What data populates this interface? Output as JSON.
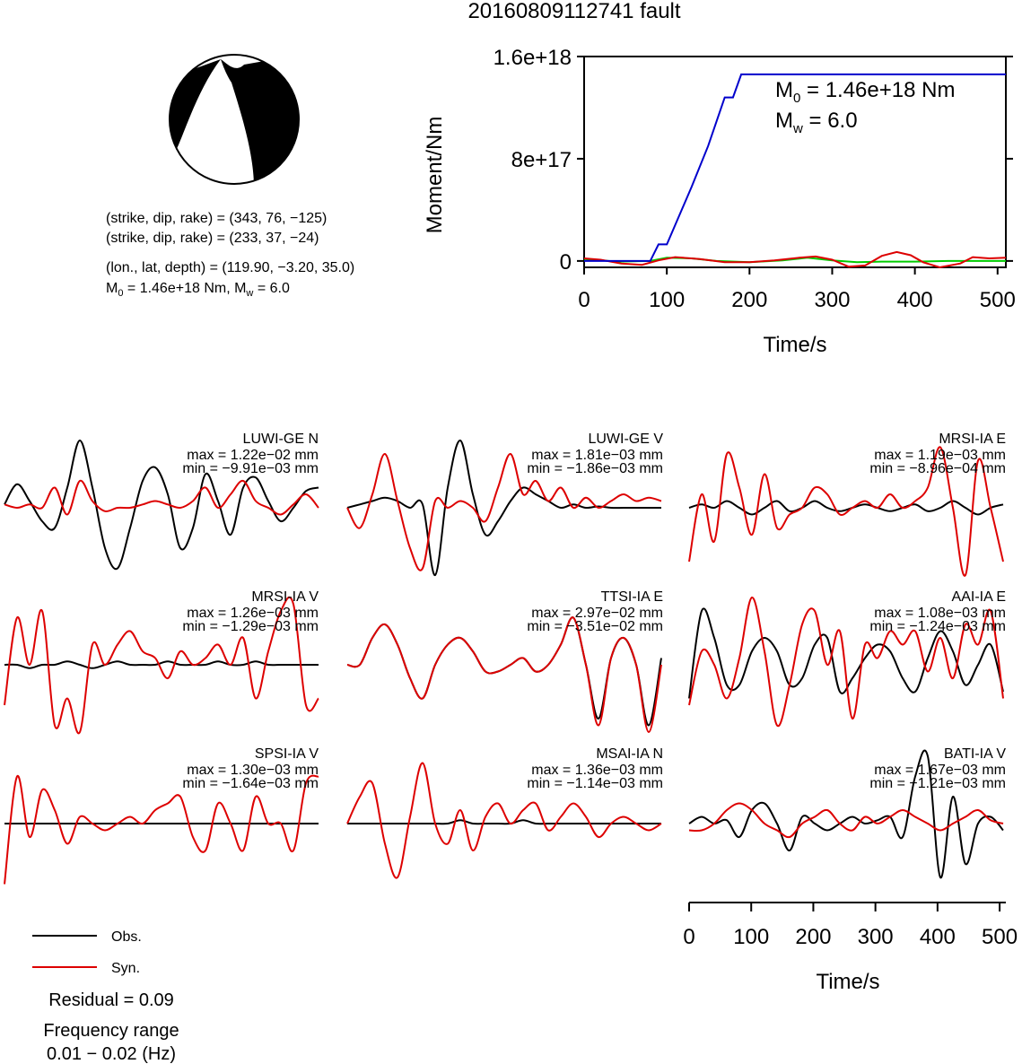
{
  "page_title": "20160809112741 fault",
  "beachball": {
    "colors": {
      "fill": "#000000",
      "paper": "#ffffff"
    },
    "lines": {
      "np1": "(strike, dip, rake) = (343, 76, −125)",
      "np2": "(strike, dip, rake) = (233, 37, −24)",
      "loc": "(lon., lat, depth) = (119.90, −3.20, 35.0)",
      "m0_prefix": "M",
      "m0_sub": "0",
      "m0_value": " = 1.46e+18 Nm, M",
      "mw_sub": "w",
      "mw_value": " = 6.0"
    }
  },
  "legend": {
    "obs": "Obs.",
    "syn": "Syn.",
    "residual": "Residual = 0.09",
    "freq_label": "Frequency range",
    "freq_value": "0.01 − 0.02 (Hz)"
  },
  "chart_data": [
    {
      "id": "moment_rate",
      "type": "line",
      "xlabel": "Time/s",
      "ylabel": "Moment/Nm",
      "xlim": [
        0,
        510
      ],
      "ylim": [
        -50000000000000000,
        1600000000000000000
      ],
      "xticks": [
        0,
        100,
        200,
        300,
        400,
        500
      ],
      "xtick_labels": [
        "0",
        "100",
        "200",
        "300",
        "400",
        "500"
      ],
      "yticks": [
        0,
        800000000000000000,
        1600000000000000000
      ],
      "ytick_labels": [
        "0",
        "8e+17",
        "1.6e+18"
      ],
      "annotation": {
        "m0_prefix": "M",
        "m0_sub": "0",
        "m0_value": " = 1.46e+18 Nm",
        "mw_prefix": "M",
        "mw_sub": "w",
        "mw_value": " = 6.0"
      },
      "series": [
        {
          "color": "#0000cc",
          "x": [
            0,
            80,
            90,
            100,
            110,
            130,
            150,
            170,
            180,
            190,
            200,
            510
          ],
          "y": [
            0,
            0,
            130000000000000000,
            130000000000000000,
            280000000000000000,
            580000000000000000,
            900000000000000000,
            1280000000000000000,
            1280000000000000000,
            1460000000000000000,
            1460000000000000000,
            1460000000000000000
          ]
        },
        {
          "color": "#00cc00",
          "x": [
            0,
            40,
            80,
            100,
            130,
            160,
            200,
            240,
            270,
            300,
            330,
            360,
            400,
            440,
            480,
            510
          ],
          "y": [
            15000000000000000,
            -5000000000000000,
            0,
            25000000000000000,
            20000000000000000,
            0,
            -10000000000000000,
            5000000000000000,
            25000000000000000,
            5000000000000000,
            -10000000000000000,
            -5000000000000000,
            -5000000000000000,
            0,
            0,
            0
          ]
        },
        {
          "color": "#dd0000",
          "x": [
            0,
            20,
            45,
            70,
            90,
            110,
            140,
            170,
            200,
            230,
            260,
            280,
            300,
            320,
            340,
            360,
            378,
            395,
            410,
            430,
            455,
            470,
            490,
            510
          ],
          "y": [
            20000000000000000,
            10000000000000000,
            -20000000000000000,
            -30000000000000000,
            5000000000000000,
            30000000000000000,
            15000000000000000,
            -10000000000000000,
            -10000000000000000,
            5000000000000000,
            25000000000000000,
            35000000000000000,
            10000000000000000,
            -45000000000000000,
            -35000000000000000,
            40000000000000000,
            70000000000000000,
            45000000000000000,
            -10000000000000000,
            -50000000000000000,
            -20000000000000000,
            30000000000000000,
            20000000000000000,
            25000000000000000
          ]
        }
      ]
    },
    {
      "id": "waveforms",
      "type": "line",
      "xlabel": "Time/s",
      "xlim": [
        0,
        510
      ],
      "xticks": [
        0,
        100,
        200,
        300,
        400,
        500
      ],
      "xtick_labels": [
        "0",
        "100",
        "200",
        "300",
        "400",
        "500"
      ],
      "legend": [
        {
          "name": "Obs.",
          "color": "#000000"
        },
        {
          "name": "Syn.",
          "color": "#dd0000"
        }
      ],
      "panels": [
        {
          "station": "LUWI-GE N",
          "max": "max = 1.22e−02 mm",
          "min": "min = −9.91e−03 mm",
          "obs": [
            0.05,
            0.35,
            0.1,
            -0.2,
            -0.3,
            0.3,
            1.0,
            0.3,
            -0.6,
            -0.9,
            -0.3,
            0.4,
            0.6,
            0.2,
            -0.6,
            -0.3,
            0.5,
            0.1,
            -0.4,
            0.3,
            0.45,
            0.1,
            -0.2,
            0.0,
            0.25,
            0.3
          ],
          "syn": [
            0.05,
            0.0,
            0.05,
            0.0,
            0.3,
            -0.1,
            0.4,
            0.1,
            -0.05,
            0.0,
            0.0,
            0.05,
            0.1,
            0.05,
            0.0,
            0.1,
            0.3,
            0.0,
            0.2,
            0.4,
            0.1,
            0.0,
            -0.1,
            0.05,
            0.2,
            0.0
          ]
        },
        {
          "station": "LUWI-GE V",
          "max": "max = 1.81e−03 mm",
          "min": "min = −1.86e−03 mm",
          "obs": [
            0.0,
            0.05,
            0.1,
            0.15,
            0.1,
            0.0,
            0.05,
            -1.0,
            0.3,
            1.0,
            0.2,
            -0.4,
            -0.2,
            0.1,
            0.3,
            0.2,
            0.1,
            0.0,
            0.05,
            0.0,
            0.02,
            0.0,
            0.0,
            0.0,
            0.0,
            0.0
          ],
          "syn": [
            0.0,
            -0.3,
            0.2,
            0.8,
            0.1,
            -0.6,
            -0.9,
            0.1,
            0.0,
            0.1,
            0.0,
            -0.2,
            0.3,
            0.8,
            0.2,
            0.4,
            0.1,
            0.3,
            0.0,
            0.15,
            0.0,
            0.1,
            0.2,
            0.1,
            0.15,
            0.1
          ]
        },
        {
          "station": "MRSI-IA E",
          "max": "max = 1.19e−03 mm",
          "min": "min = −8.96e−04 mm",
          "obs": [
            0.0,
            0.05,
            0.0,
            0.1,
            0.0,
            -0.1,
            0.0,
            0.1,
            -0.05,
            0.0,
            0.1,
            0.0,
            -0.05,
            0.0,
            0.05,
            0.0,
            -0.05,
            0.0,
            0.05,
            -0.05,
            0.0,
            0.1,
            0.0,
            -0.1,
            0.0,
            0.05
          ],
          "syn": [
            -0.8,
            0.2,
            -0.5,
            0.8,
            0.3,
            -0.4,
            0.5,
            -0.3,
            -0.1,
            0.0,
            0.3,
            0.2,
            -0.1,
            0.0,
            0.1,
            0.0,
            0.2,
            0.0,
            0.1,
            0.3,
            0.9,
            0.0,
            -1.0,
            0.7,
            0.0,
            -0.8
          ]
        },
        {
          "station": "MRSI-IA V",
          "max": "max = 1.26e−03 mm",
          "min": "min = −1.29e−03 mm",
          "obs": [
            0.0,
            0.0,
            -0.05,
            0.0,
            0.0,
            0.05,
            0.0,
            -0.05,
            0.0,
            0.05,
            0.0,
            0.0,
            0.0,
            0.05,
            0.0,
            0.0,
            0.0,
            0.05,
            0.0,
            0.0,
            0.05,
            0.0,
            0.0,
            0.0,
            0.0,
            0.0
          ],
          "syn": [
            -0.6,
            0.7,
            0.0,
            0.8,
            -0.9,
            -0.5,
            -1.0,
            0.3,
            0.0,
            0.3,
            0.5,
            0.2,
            0.1,
            -0.2,
            0.2,
            0.0,
            0.1,
            0.3,
            0.0,
            0.4,
            -0.5,
            0.2,
            0.8,
            0.9,
            -0.6,
            -0.5
          ]
        },
        {
          "station": "TTSI-IA E",
          "max": "max = 2.97e−02 mm",
          "min": "min = −3.51e−02 mm",
          "obs": [
            0.0,
            0.0,
            0.4,
            0.6,
            0.3,
            -0.2,
            -0.5,
            0.0,
            0.3,
            0.4,
            0.2,
            -0.1,
            -0.1,
            0.0,
            0.1,
            -0.1,
            0.0,
            0.3,
            0.7,
            0.0,
            -0.8,
            0.1,
            0.4,
            0.0,
            -0.9,
            0.1
          ],
          "syn": [
            0.0,
            0.0,
            0.4,
            0.6,
            0.3,
            -0.2,
            -0.5,
            0.0,
            0.3,
            0.4,
            0.2,
            -0.1,
            -0.1,
            0.0,
            0.1,
            -0.1,
            0.0,
            0.3,
            0.7,
            0.0,
            -0.9,
            0.1,
            0.4,
            0.0,
            -1.0,
            0.0
          ]
        },
        {
          "station": "AAI-IA E",
          "max": "max = 1.08e−03 mm",
          "min": "min = −1.24e−03 mm",
          "obs": [
            -0.5,
            0.8,
            0.4,
            -0.3,
            -0.3,
            0.2,
            0.4,
            0.2,
            -0.3,
            -0.2,
            0.3,
            0.4,
            -0.4,
            -0.2,
            0.1,
            0.3,
            0.2,
            -0.2,
            -0.4,
            0.1,
            0.5,
            0.2,
            -0.3,
            0.0,
            0.3,
            -0.4
          ],
          "syn": [
            -0.6,
            0.2,
            0.0,
            -0.5,
            0.1,
            1.0,
            0.2,
            -0.9,
            -0.3,
            0.6,
            0.8,
            0.0,
            0.5,
            -0.8,
            0.3,
            0.1,
            0.5,
            0.3,
            0.5,
            -0.1,
            0.4,
            -0.2,
            0.6,
            0.3,
            0.8,
            -0.5
          ]
        },
        {
          "station": "SPSI-IA V",
          "max": "max = 1.30e−03 mm",
          "min": "min = −1.64e−03 mm",
          "obs": [
            0.0,
            0.0,
            0.0,
            0.0,
            0.0,
            0.0,
            0.0,
            0.0,
            0.0,
            0.0,
            0.0,
            0.0,
            0.0,
            0.0,
            0.0,
            0.0,
            0.0,
            0.0,
            0.0,
            0.0,
            0.0,
            0.0,
            0.0,
            0.0,
            0.0,
            0.0
          ],
          "syn": [
            -0.9,
            0.7,
            -0.2,
            0.5,
            0.2,
            -0.3,
            0.1,
            0.0,
            -0.1,
            0.0,
            0.1,
            0.0,
            0.2,
            0.3,
            0.4,
            -0.2,
            -0.4,
            0.3,
            0.0,
            -0.4,
            0.4,
            0.0,
            0.0,
            -0.4,
            0.6,
            0.7
          ]
        },
        {
          "station": "MSAI-IA N",
          "max": "max = 1.36e−03 mm",
          "min": "min = −1.14e−03 mm",
          "obs": [
            0.0,
            0.0,
            0.0,
            0.0,
            0.0,
            0.0,
            0.0,
            0.0,
            0.0,
            0.05,
            0.0,
            0.0,
            0.0,
            0.0,
            0.05,
            0.0,
            0.0,
            0.0,
            0.0,
            0.0,
            0.0,
            0.0,
            0.0,
            0.0,
            0.0,
            0.0
          ],
          "syn": [
            0.0,
            0.4,
            0.6,
            -0.3,
            -0.8,
            0.1,
            0.9,
            0.0,
            -0.3,
            0.2,
            -0.4,
            0.1,
            0.3,
            0.0,
            0.2,
            0.3,
            -0.1,
            0.1,
            0.3,
            0.1,
            -0.2,
            0.0,
            0.1,
            0.0,
            -0.1,
            0.0
          ]
        },
        {
          "station": "BATI-IA V",
          "max": "max = 1.67e−03 mm",
          "min": "min = −1.21e−03 mm",
          "obs": [
            0.0,
            0.1,
            0.0,
            0.05,
            -0.2,
            0.2,
            0.3,
            0.0,
            -0.4,
            0.1,
            0.0,
            -0.1,
            0.0,
            0.1,
            0.0,
            0.05,
            0.1,
            -0.2,
            0.7,
            1.0,
            -0.8,
            0.4,
            -0.6,
            0.0,
            0.1,
            -0.1
          ],
          "syn": [
            -0.1,
            -0.1,
            0.0,
            0.2,
            0.3,
            0.2,
            0.0,
            -0.1,
            -0.2,
            0.0,
            0.1,
            0.2,
            0.0,
            -0.1,
            0.1,
            0.0,
            0.1,
            0.2,
            0.1,
            0.0,
            -0.1,
            0.0,
            0.1,
            0.2,
            0.05,
            0.0
          ]
        }
      ]
    }
  ]
}
